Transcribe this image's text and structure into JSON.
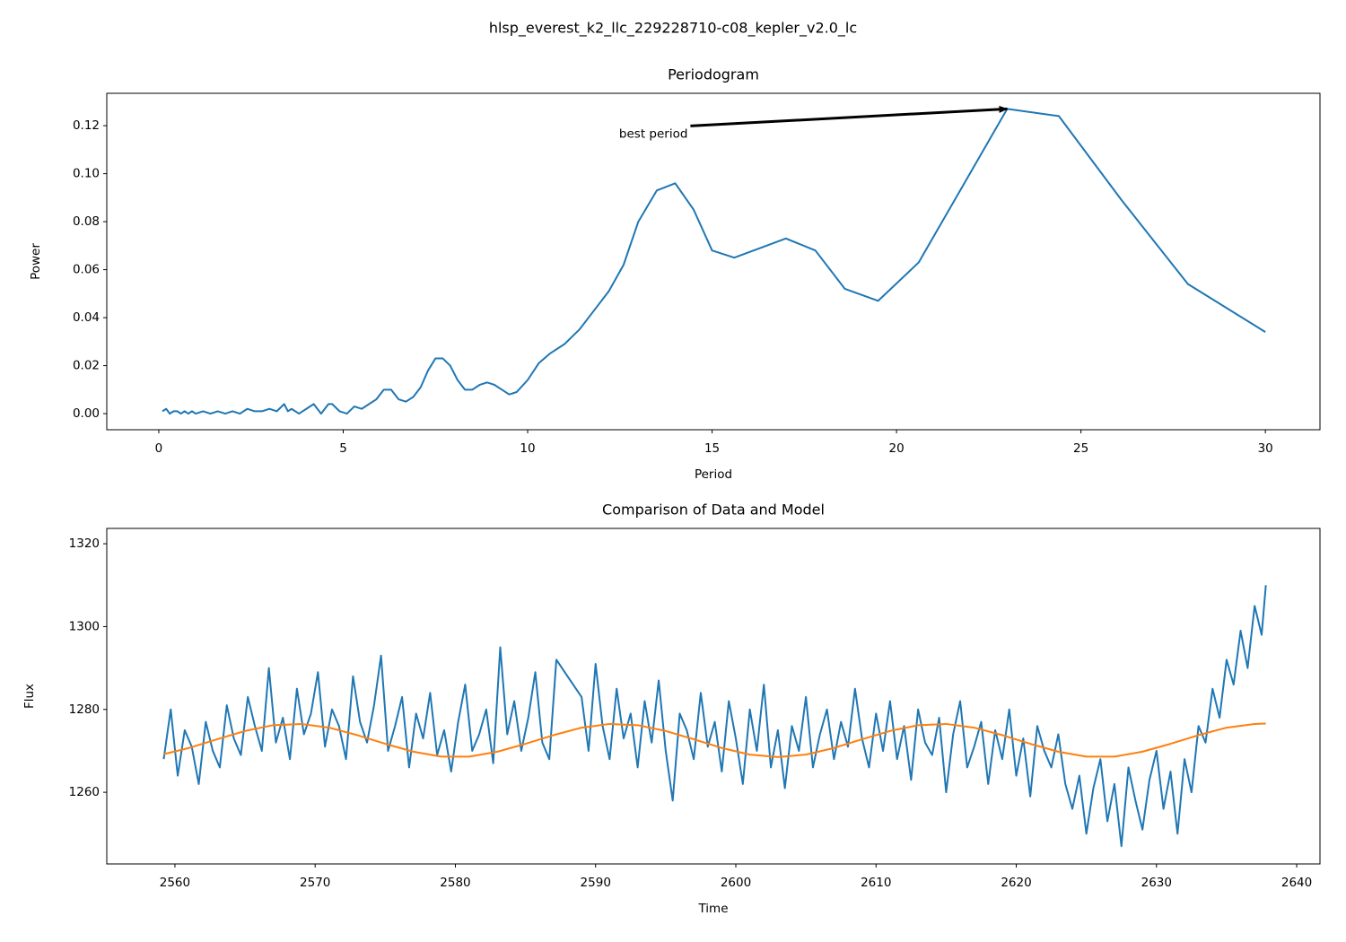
{
  "title": "hlsp_everest_k2_llc_229228710-c08_kepler_v2.0_lc",
  "chart_data": [
    {
      "type": "line",
      "title": "Periodogram",
      "xlabel": "Period",
      "ylabel": "Power",
      "xlim": [
        -1.41,
        31.48
      ],
      "ylim": [
        -0.0067,
        0.1335
      ],
      "xticks": [
        0,
        5,
        10,
        15,
        20,
        25,
        30
      ],
      "yticks": [
        {
          "value": 0,
          "label": "0.00"
        },
        {
          "value": 0.02,
          "label": "0.02"
        },
        {
          "value": 0.04,
          "label": "0.04"
        },
        {
          "value": 0.06,
          "label": "0.06"
        },
        {
          "value": 0.08,
          "label": "0.08"
        },
        {
          "value": 0.1,
          "label": "0.10"
        },
        {
          "value": 0.12,
          "label": "0.12"
        }
      ],
      "annotation": {
        "text": "best period",
        "x": 23.0,
        "y": 0.127
      },
      "series": [
        {
          "color": "#1f77b4",
          "x": [
            0.1,
            0.2,
            0.3,
            0.4,
            0.5,
            0.6,
            0.7,
            0.8,
            0.9,
            1.0,
            1.2,
            1.4,
            1.6,
            1.8,
            2.0,
            2.2,
            2.4,
            2.6,
            2.8,
            3.0,
            3.2,
            3.4,
            3.5,
            3.6,
            3.8,
            4.0,
            4.2,
            4.4,
            4.6,
            4.7,
            4.9,
            5.1,
            5.3,
            5.5,
            5.7,
            5.9,
            6.1,
            6.3,
            6.5,
            6.7,
            6.9,
            7.1,
            7.3,
            7.5,
            7.7,
            7.9,
            8.1,
            8.3,
            8.5,
            8.7,
            8.9,
            9.1,
            9.3,
            9.5,
            9.7,
            10.0,
            10.3,
            10.6,
            11.0,
            11.4,
            11.8,
            12.2,
            12.6,
            13.0,
            13.5,
            14.0,
            14.5,
            15.0,
            15.6,
            16.3,
            17.0,
            17.8,
            18.6,
            19.5,
            20.6,
            21.8,
            23.0,
            24.4,
            26.1,
            27.9,
            30.0
          ],
          "values": [
            0.001,
            0.002,
            0.0,
            0.001,
            0.001,
            0.0,
            0.001,
            0.0,
            0.001,
            0.0,
            0.001,
            0.0,
            0.001,
            0.0,
            0.001,
            0.0,
            0.002,
            0.001,
            0.001,
            0.002,
            0.001,
            0.004,
            0.001,
            0.002,
            0.0,
            0.002,
            0.004,
            0.0,
            0.004,
            0.004,
            0.001,
            0.0,
            0.003,
            0.002,
            0.004,
            0.006,
            0.01,
            0.01,
            0.006,
            0.005,
            0.007,
            0.011,
            0.018,
            0.023,
            0.023,
            0.02,
            0.014,
            0.01,
            0.01,
            0.012,
            0.013,
            0.012,
            0.01,
            0.008,
            0.009,
            0.014,
            0.021,
            0.025,
            0.029,
            0.035,
            0.043,
            0.051,
            0.062,
            0.08,
            0.093,
            0.096,
            0.085,
            0.068,
            0.065,
            0.069,
            0.073,
            0.068,
            0.052,
            0.047,
            0.063,
            0.095,
            0.127,
            0.124,
            0.089,
            0.054,
            0.034
          ]
        }
      ]
    },
    {
      "type": "line",
      "title": "Comparison of Data and Model",
      "xlabel": "Time",
      "ylabel": "Flux",
      "xlim": [
        2555.14,
        2641.66
      ],
      "ylim": [
        1242.7,
        1323.7
      ],
      "xticks": [
        2560,
        2570,
        2580,
        2590,
        2600,
        2610,
        2620,
        2630,
        2640
      ],
      "yticks": [
        1260,
        1280,
        1300,
        1320
      ],
      "series": [
        {
          "color": "#1f77b4",
          "x": [
            2559.2,
            2559.7,
            2560.2,
            2560.7,
            2561.2,
            2561.7,
            2562.2,
            2562.7,
            2563.2,
            2563.7,
            2564.2,
            2564.7,
            2565.2,
            2565.7,
            2566.2,
            2566.7,
            2567.2,
            2567.7,
            2568.2,
            2568.7,
            2569.2,
            2569.7,
            2570.2,
            2570.7,
            2571.2,
            2571.7,
            2572.2,
            2572.7,
            2573.2,
            2573.7,
            2574.2,
            2574.7,
            2575.2,
            2575.7,
            2576.2,
            2576.7,
            2577.2,
            2577.7,
            2578.2,
            2578.7,
            2579.2,
            2579.7,
            2580.2,
            2580.7,
            2581.2,
            2581.7,
            2582.2,
            2582.7,
            2583.2,
            2583.7,
            2584.2,
            2584.7,
            2585.2,
            2585.7,
            2586.2,
            2586.7,
            2587.2,
            2589.0,
            2589.5,
            2590.0,
            2590.5,
            2591.0,
            2591.5,
            2592.0,
            2592.5,
            2593.0,
            2593.5,
            2594.0,
            2594.5,
            2595.0,
            2595.5,
            2596.0,
            2596.5,
            2597.0,
            2597.5,
            2598.0,
            2598.5,
            2599.0,
            2599.5,
            2600.0,
            2600.5,
            2601.0,
            2601.5,
            2602.0,
            2602.5,
            2603.0,
            2603.5,
            2604.0,
            2604.5,
            2605.0,
            2605.5,
            2606.0,
            2606.5,
            2607.0,
            2607.5,
            2608.0,
            2608.5,
            2609.0,
            2609.5,
            2610.0,
            2610.5,
            2611.0,
            2611.5,
            2612.0,
            2612.5,
            2613.0,
            2613.5,
            2614.0,
            2614.5,
            2615.0,
            2615.5,
            2616.0,
            2616.5,
            2617.0,
            2617.5,
            2618.0,
            2618.5,
            2619.0,
            2619.5,
            2620.0,
            2620.5,
            2621.0,
            2621.5,
            2622.0,
            2622.5,
            2623.0,
            2623.5,
            2624.0,
            2624.5,
            2625.0,
            2625.5,
            2626.0,
            2626.5,
            2627.0,
            2627.5,
            2628.0,
            2628.5,
            2629.0,
            2629.5,
            2630.0,
            2630.5,
            2631.0,
            2631.5,
            2632.0,
            2632.5,
            2633.0,
            2633.5,
            2634.0,
            2634.5,
            2635.0,
            2635.5,
            2636.0,
            2636.5,
            2637.0,
            2637.5,
            2637.8
          ],
          "values": [
            1268,
            1280,
            1264,
            1275,
            1271,
            1262,
            1277,
            1270,
            1266,
            1281,
            1273,
            1269,
            1283,
            1276,
            1270,
            1290,
            1272,
            1278,
            1268,
            1285,
            1274,
            1279,
            1289,
            1271,
            1280,
            1276,
            1268,
            1288,
            1277,
            1272,
            1281,
            1293,
            1270,
            1276,
            1283,
            1266,
            1279,
            1273,
            1284,
            1269,
            1275,
            1265,
            1277,
            1286,
            1270,
            1274,
            1280,
            1267,
            1295,
            1274,
            1282,
            1270,
            1278,
            1289,
            1272,
            1268,
            1292,
            1283,
            1270,
            1291,
            1276,
            1268,
            1285,
            1273,
            1279,
            1266,
            1282,
            1272,
            1287,
            1270,
            1258,
            1279,
            1275,
            1268,
            1284,
            1271,
            1277,
            1265,
            1282,
            1273,
            1262,
            1280,
            1270,
            1286,
            1266,
            1275,
            1261,
            1276,
            1270,
            1283,
            1266,
            1274,
            1280,
            1268,
            1277,
            1271,
            1285,
            1273,
            1266,
            1279,
            1270,
            1282,
            1268,
            1276,
            1263,
            1280,
            1272,
            1269,
            1278,
            1260,
            1274,
            1282,
            1266,
            1271,
            1277,
            1262,
            1275,
            1268,
            1280,
            1264,
            1273,
            1259,
            1276,
            1270,
            1266,
            1274,
            1262,
            1256,
            1264,
            1250,
            1261,
            1268,
            1253,
            1262,
            1247,
            1266,
            1258,
            1251,
            1263,
            1270,
            1256,
            1265,
            1250,
            1268,
            1260,
            1276,
            1272,
            1285,
            1278,
            1292,
            1286,
            1299,
            1290,
            1305,
            1298,
            1310
          ]
        },
        {
          "color": "#ff7f0e",
          "x": [
            2559.2,
            2561,
            2563,
            2565,
            2567,
            2569,
            2571,
            2573,
            2575,
            2577,
            2579,
            2581,
            2583,
            2585,
            2587,
            2589,
            2591,
            2593,
            2595,
            2597,
            2599,
            2601,
            2603,
            2605,
            2607,
            2609,
            2611,
            2613,
            2615,
            2617,
            2619,
            2621,
            2623,
            2625,
            2627,
            2629,
            2631,
            2633,
            2635,
            2637,
            2637.8
          ],
          "values": [
            1269.2,
            1270.7,
            1272.8,
            1274.8,
            1276.2,
            1276.5,
            1275.6,
            1273.8,
            1271.7,
            1269.8,
            1268.6,
            1268.6,
            1269.8,
            1271.7,
            1273.8,
            1275.6,
            1276.5,
            1276.2,
            1274.8,
            1272.8,
            1270.7,
            1269.1,
            1268.5,
            1269.1,
            1270.7,
            1272.8,
            1274.8,
            1276.2,
            1276.5,
            1275.6,
            1273.8,
            1271.7,
            1269.8,
            1268.6,
            1268.6,
            1269.8,
            1271.7,
            1273.8,
            1275.6,
            1276.5,
            1276.6
          ]
        }
      ]
    }
  ]
}
